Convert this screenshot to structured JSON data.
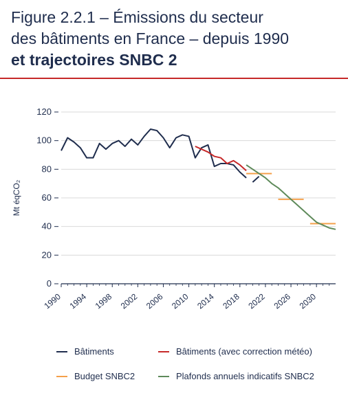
{
  "header": {
    "title_line1": "Figure 2.2.1 – Émissions du secteur",
    "title_line2": "des bâtiments en France – depuis 1990",
    "title_line3": "et trajectoires SNBC 2"
  },
  "colors": {
    "title_rule": "#c62828",
    "axis": "#1f2d4d",
    "grid": "#d9d9d9"
  },
  "chart_data": {
    "type": "line",
    "ylabel": "Mt éqCO₂",
    "ylim": [
      0,
      120
    ],
    "xlim": [
      1990,
      2033
    ],
    "y_ticks": [
      0,
      20,
      40,
      60,
      80,
      100,
      120
    ],
    "x_ticks": [
      1990,
      1994,
      1998,
      2002,
      2006,
      2010,
      2014,
      2018,
      2022,
      2026,
      2030
    ],
    "grid": true,
    "legend_position": "bottom",
    "series": [
      {
        "name": "Bâtiments",
        "color": "#1f2d4d",
        "style": "line",
        "x": [
          1990,
          1991,
          1992,
          1993,
          1994,
          1995,
          1996,
          1997,
          1998,
          1999,
          2000,
          2001,
          2002,
          2003,
          2004,
          2005,
          2006,
          2007,
          2008,
          2009,
          2010,
          2011,
          2012,
          2013,
          2014,
          2015,
          2016,
          2017,
          2018,
          2019
        ],
        "y": [
          93,
          102,
          99,
          95,
          88,
          88,
          98,
          94,
          98,
          100,
          96,
          101,
          97,
          103,
          108,
          107,
          102,
          95,
          102,
          104,
          103,
          88,
          95,
          97,
          82,
          84,
          84,
          83,
          78,
          74
        ]
      },
      {
        "name": "Bâtiments (avec correction météo)",
        "color": "#c62828",
        "style": "line",
        "x": [
          2011,
          2012,
          2013,
          2014,
          2015,
          2016,
          2017,
          2018,
          2019
        ],
        "y": [
          96,
          94,
          92,
          89,
          88,
          84,
          86,
          83,
          79
        ]
      },
      {
        "name": "Budget SNBC2",
        "color": "#f5a04a",
        "style": "step",
        "segments": [
          {
            "x0": 2019,
            "x1": 2023,
            "y": 77
          },
          {
            "x0": 2024,
            "x1": 2028,
            "y": 59
          },
          {
            "x0": 2029,
            "x1": 2033,
            "y": 42
          }
        ]
      },
      {
        "name": "Plafonds annuels indicatifs SNBC2",
        "color": "#5e8a5a",
        "style": "line",
        "x": [
          2019,
          2020,
          2021,
          2022,
          2023,
          2024,
          2025,
          2026,
          2027,
          2028,
          2029,
          2030,
          2031,
          2032,
          2033
        ],
        "y": [
          83,
          80,
          77,
          74,
          70,
          67,
          63,
          59,
          55,
          51,
          47,
          43,
          41,
          39,
          38
        ]
      }
    ]
  },
  "extra_segment": {
    "x": [
      2020,
      2021
    ],
    "y": [
      71,
      75
    ]
  }
}
